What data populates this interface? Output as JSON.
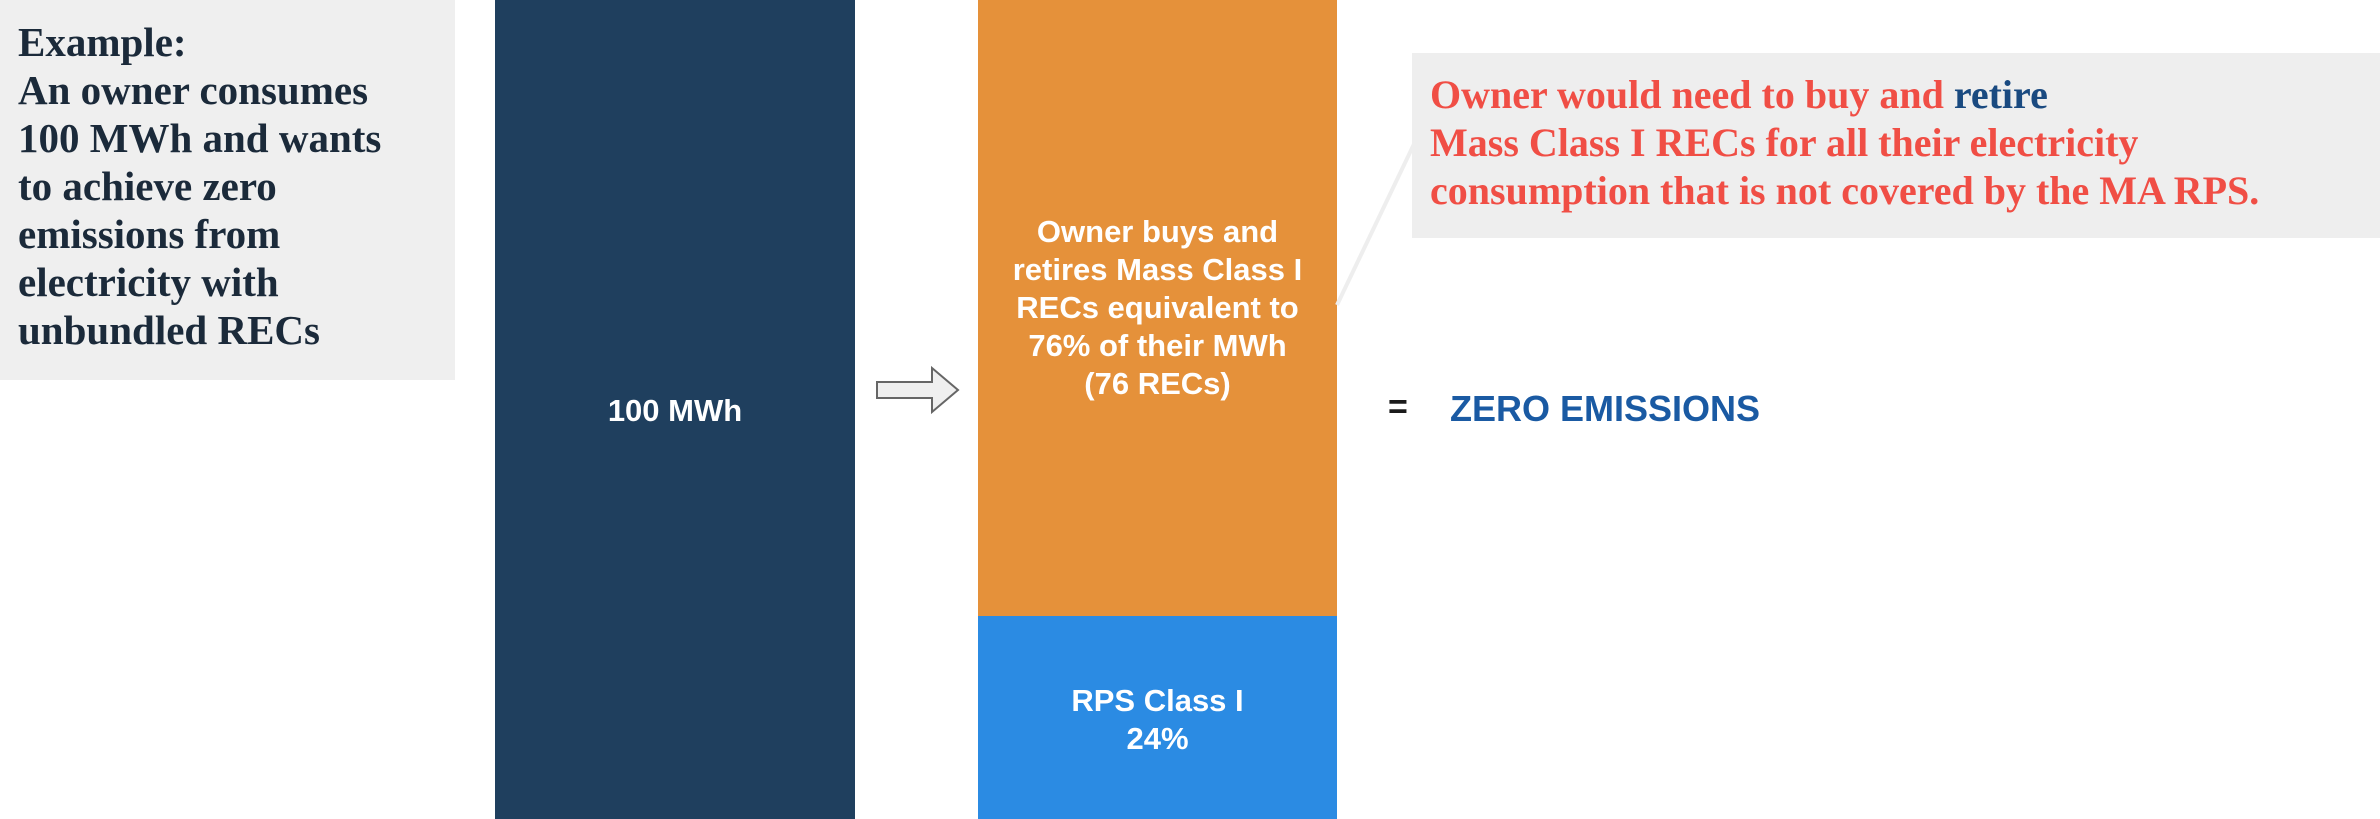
{
  "example": {
    "title": "Example:",
    "lines": [
      "An owner consumes",
      "100 MWh and wants",
      "to achieve zero",
      "emissions from",
      "electricity with",
      "unbundled RECs"
    ]
  },
  "consumption_bar": {
    "label": "100 MWh"
  },
  "rec_bar": {
    "segments": [
      {
        "label_lines": [
          "Owner buys and",
          "retires Mass Class I",
          "RECs equivalent to",
          "76% of their MWh",
          "(76 RECs)"
        ]
      },
      {
        "label_lines": [
          "RPS Class I",
          "24%"
        ]
      }
    ]
  },
  "callout": {
    "lines": [
      [
        {
          "text": "Owner would need to buy and "
        },
        {
          "text": "retire",
          "highlight": true
        }
      ],
      [
        {
          "text": "Mass Class I RECs for all their electricity"
        }
      ],
      [
        {
          "text": "consumption that is not covered by the MA RPS."
        }
      ]
    ]
  },
  "result": {
    "equals": "=",
    "text": "ZERO EMISSIONS"
  }
}
